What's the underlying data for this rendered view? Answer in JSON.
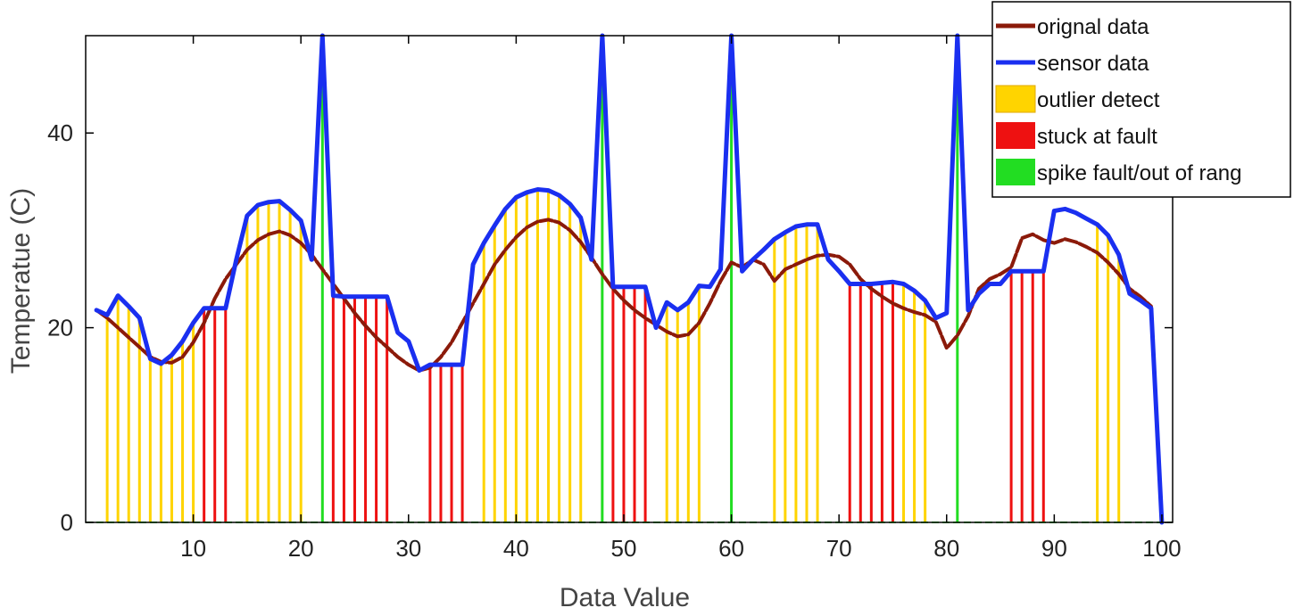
{
  "chart_data": {
    "type": "line",
    "title": "",
    "xlabel": "Data Value",
    "ylabel": "Temperatue (C)",
    "xlim": [
      0,
      101
    ],
    "ylim": [
      0,
      50
    ],
    "xticks": [
      10,
      20,
      30,
      40,
      50,
      60,
      70,
      80,
      90,
      100
    ],
    "yticks": [
      0,
      20,
      40
    ],
    "legend_position": "top-right",
    "colors": {
      "original": "#8b1a0a",
      "sensor": "#1a2ff0",
      "outlier": "#ffd400",
      "stuck": "#ee1111",
      "spike": "#22dd22"
    },
    "series": [
      {
        "name": "orignal data",
        "key": "original",
        "x": [
          1,
          2,
          3,
          4,
          5,
          6,
          7,
          8,
          9,
          10,
          11,
          12,
          13,
          14,
          15,
          16,
          17,
          18,
          19,
          20,
          21,
          22,
          23,
          24,
          25,
          26,
          27,
          28,
          29,
          30,
          31,
          32,
          33,
          34,
          35,
          36,
          37,
          38,
          39,
          40,
          41,
          42,
          43,
          44,
          45,
          46,
          47,
          48,
          49,
          50,
          51,
          52,
          53,
          54,
          55,
          56,
          57,
          58,
          59,
          60,
          61,
          62,
          63,
          64,
          65,
          66,
          67,
          68,
          69,
          70,
          71,
          72,
          73,
          74,
          75,
          76,
          77,
          78,
          79,
          80,
          81,
          82,
          83,
          84,
          85,
          86,
          87,
          88,
          89,
          90,
          91,
          92,
          93,
          94,
          95,
          96,
          97,
          98,
          99,
          100
        ],
        "y": [
          21.8,
          21,
          20,
          19,
          18,
          17,
          16.5,
          16.4,
          17,
          18.5,
          20.5,
          23,
          25,
          26.5,
          28,
          29,
          29.6,
          29.9,
          29.5,
          28.7,
          27.5,
          26,
          24.5,
          23,
          21.5,
          20.2,
          19,
          18,
          17,
          16.2,
          15.6,
          15.9,
          17,
          18.5,
          20.5,
          22.5,
          24.5,
          26.5,
          28,
          29.3,
          30.3,
          30.9,
          31.1,
          30.8,
          30,
          28.8,
          27.2,
          25.5,
          24,
          22.8,
          21.8,
          21,
          20.3,
          19.6,
          19.1,
          19.3,
          20.5,
          22.5,
          24.8,
          26.7,
          26.2,
          27,
          26.5,
          24.8,
          26,
          26.5,
          27,
          27.4,
          27.5,
          27.3,
          26.5,
          25,
          24,
          23.2,
          22.5,
          22,
          21.6,
          21.3,
          20.6,
          17.9,
          19.2,
          21.2,
          24,
          25,
          25.5,
          26.2,
          29.2,
          29.6,
          29,
          28.7,
          29.1,
          28.8,
          28.3,
          27.7,
          26.7,
          25.5,
          24,
          23.2,
          22.2,
          0.2
        ]
      },
      {
        "name": "sensor data",
        "key": "sensor",
        "x": [
          1,
          2,
          3,
          4,
          5,
          6,
          7,
          8,
          9,
          10,
          11,
          12,
          13,
          14,
          15,
          16,
          17,
          18,
          19,
          20,
          21,
          22,
          23,
          24,
          25,
          26,
          27,
          28,
          29,
          30,
          31,
          32,
          33,
          34,
          35,
          36,
          37,
          38,
          39,
          40,
          41,
          42,
          43,
          44,
          45,
          46,
          47,
          48,
          49,
          50,
          51,
          52,
          53,
          54,
          55,
          56,
          57,
          58,
          59,
          60,
          61,
          62,
          63,
          64,
          65,
          66,
          67,
          68,
          69,
          70,
          71,
          72,
          73,
          74,
          75,
          76,
          77,
          78,
          79,
          80,
          81,
          82,
          83,
          84,
          85,
          86,
          87,
          88,
          89,
          90,
          91,
          92,
          93,
          94,
          95,
          96,
          97,
          98,
          99,
          100
        ],
        "y": [
          21.8,
          21.3,
          23.3,
          22.2,
          21,
          16.8,
          16.3,
          17.2,
          18.6,
          20.5,
          22,
          22,
          22,
          27,
          31.5,
          32.6,
          32.9,
          33,
          32.1,
          31,
          27,
          50,
          23.3,
          23.2,
          23.2,
          23.2,
          23.2,
          23.2,
          19.5,
          18.6,
          15.6,
          16.2,
          16.2,
          16.2,
          16.2,
          26.5,
          28.7,
          30.5,
          32.2,
          33.4,
          33.9,
          34.2,
          34.1,
          33.6,
          32.7,
          31.3,
          27,
          50,
          24.2,
          24.2,
          24.2,
          24.2,
          20,
          22.6,
          21.8,
          22.6,
          24.3,
          24.2,
          26,
          50,
          25.8,
          27,
          28,
          29.1,
          29.8,
          30.4,
          30.6,
          30.6,
          27,
          25.8,
          24.5,
          24.5,
          24.5,
          24.6,
          24.7,
          24.5,
          23.8,
          22.8,
          21,
          21.5,
          50,
          21.8,
          23.5,
          24.5,
          24.5,
          25.8,
          25.8,
          25.8,
          25.8,
          32,
          32.2,
          31.8,
          31.2,
          30.6,
          29.5,
          27.5,
          23.5,
          22.8,
          22,
          0
        ]
      }
    ],
    "fault_bars": [
      {
        "name": "outlier detect",
        "key": "outlier",
        "x": [
          2,
          3,
          4,
          5,
          6,
          7,
          8,
          9,
          10,
          15,
          16,
          17,
          18,
          19,
          20,
          37,
          38,
          39,
          40,
          41,
          42,
          43,
          44,
          45,
          46,
          54,
          55,
          56,
          57,
          64,
          65,
          66,
          67,
          68,
          76,
          77,
          78,
          94,
          95,
          96
        ]
      },
      {
        "name": "stuck at fault",
        "key": "stuck",
        "x": [
          11,
          12,
          13,
          23,
          24,
          25,
          26,
          27,
          28,
          32,
          33,
          34,
          35,
          49,
          50,
          51,
          52,
          71,
          72,
          73,
          74,
          75,
          86,
          87,
          88,
          89
        ]
      },
      {
        "name": "spike fault/out of rang",
        "key": "spike",
        "x": [
          22,
          48,
          60,
          81
        ]
      }
    ],
    "legend": [
      {
        "label": "orignal data",
        "key": "original",
        "kind": "line"
      },
      {
        "label": "sensor data",
        "key": "sensor",
        "kind": "line"
      },
      {
        "label": "outlier detect",
        "key": "outlier",
        "kind": "patch"
      },
      {
        "label": "stuck at fault",
        "key": "stuck",
        "kind": "patch"
      },
      {
        "label": "spike fault/out of rang",
        "key": "spike",
        "kind": "patch"
      }
    ]
  }
}
